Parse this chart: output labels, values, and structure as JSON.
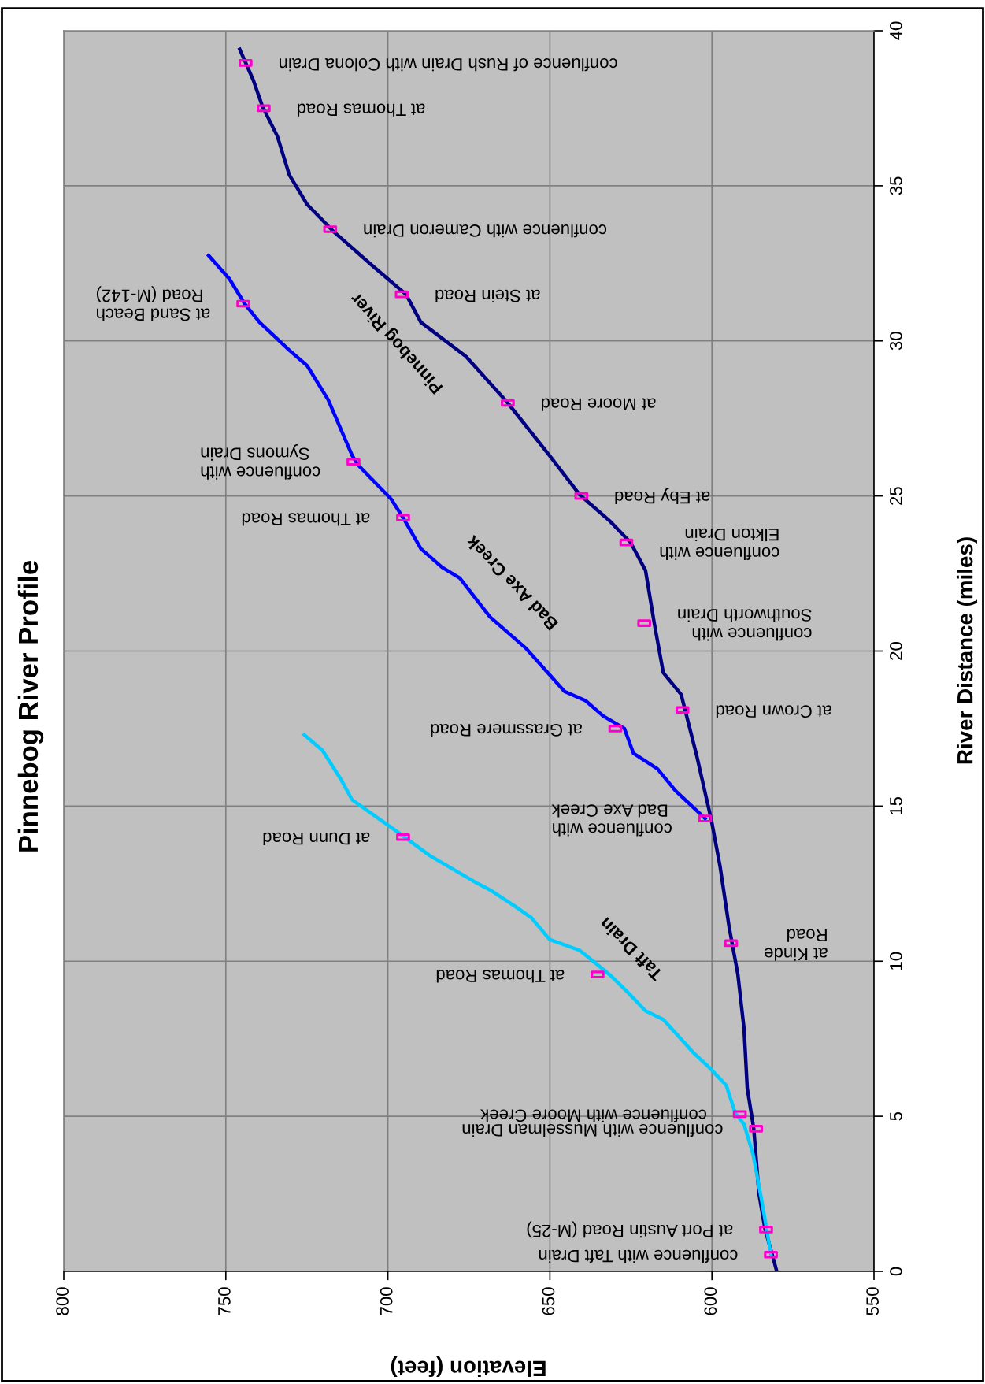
{
  "chart_data": {
    "type": "line",
    "title": "Pinnebog River Profile",
    "xlabel": "Elevation (feet)",
    "ylabel": "River Distance (miles)",
    "xlim": [
      800,
      550
    ],
    "xticks": [
      550,
      600,
      650,
      700,
      750,
      800
    ],
    "ylim": [
      0,
      40
    ],
    "yticks": [
      0,
      5,
      10,
      15,
      20,
      25,
      30,
      35,
      40
    ],
    "grid": true,
    "series": [
      {
        "name": "Pinnebog River",
        "color": "#000080",
        "values": [
          0,
          0.54,
          1.35,
          2.51,
          4.6,
          5.9,
          7.83,
          9.57,
          11.1,
          13.06,
          14.56,
          16.67,
          18.6,
          19.3,
          20.9,
          22.6,
          23.5,
          24.2,
          25.04,
          26.3,
          28.0,
          29.5,
          30.6,
          31.5,
          32.4,
          33.5,
          34.4,
          35.35,
          36.6,
          37.56,
          38.4,
          39.4
        ],
        "x": [
          580,
          581.4,
          583.6,
          585.5,
          587.1,
          589.1,
          590.1,
          592,
          594.7,
          597.5,
          600.2,
          604.8,
          609.5,
          615,
          617.8,
          620.5,
          625.1,
          631.6,
          640.8,
          650.1,
          663,
          675.9,
          689.8,
          694.4,
          704.5,
          716.5,
          724.9,
          730.4,
          734.1,
          738.7,
          741.5,
          745.7
        ]
      },
      {
        "name": "Bad Axe Creek",
        "color": "#0000ff",
        "values": [
          14.6,
          15.5,
          16.2,
          16.7,
          17.5,
          17.9,
          18.4,
          18.7,
          20.1,
          21.1,
          22.35,
          22.7,
          23.3,
          24.3,
          24.9,
          26.0,
          26.3,
          28.1,
          29.2,
          29.7,
          30.6,
          31.2,
          32.0,
          32.75
        ],
        "x": [
          602.1,
          611.3,
          616.8,
          624.2,
          627,
          633.5,
          639,
          645.5,
          657.5,
          668.5,
          677.8,
          683.3,
          689.8,
          695.3,
          699,
          709.2,
          711,
          718.4,
          724.9,
          730.4,
          739.6,
          744.2,
          748.9,
          755.3
        ]
      },
      {
        "name": "Taft Drain",
        "color": "#00ccff",
        "values": [
          0.54,
          2.2,
          3.77,
          4.74,
          5.1,
          6.0,
          6.6,
          7.06,
          8.12,
          8.4,
          9.0,
          9.57,
          10.35,
          10.7,
          11.4,
          11.8,
          12.3,
          12.5,
          13.4,
          14.04,
          15.2,
          15.9,
          16.8,
          17.3
        ],
        "x": [
          581.8,
          584.5,
          587.3,
          590.1,
          592.8,
          595.6,
          601.1,
          605.8,
          615,
          620.5,
          626,
          631.6,
          640.8,
          650.1,
          655.7,
          661.2,
          668.5,
          672.2,
          687,
          695.3,
          711,
          714.7,
          720.2,
          725.8
        ]
      },
      {
        "type": "scatter",
        "marker": "square",
        "color": "#ff00cc",
        "values": [
          38.96,
          37.5,
          33.6,
          31.2,
          31.5,
          28.0,
          26.1,
          25.0,
          24.3,
          23.5,
          20.9,
          18.1,
          17.5,
          14.6,
          14.0,
          10.58,
          9.57,
          5.07,
          4.6,
          1.35,
          0.54
        ],
        "x": [
          743.9,
          738.3,
          717.8,
          744.6,
          695.7,
          663,
          710.6,
          640.3,
          695.3,
          626.4,
          620.9,
          609.1,
          629.8,
          602.1,
          695.3,
          594.1,
          635.3,
          591.4,
          586.4,
          583.3,
          581.8
        ]
      }
    ],
    "annotations": [
      {
        "text": "confluence of Rush Drain with Colona Drain",
        "x": 743.9,
        "y": 38.96
      },
      {
        "text": "at Thomas Road",
        "x": 738.3,
        "y": 37.5
      },
      {
        "text": "confluence with Cameron Drain",
        "x": 717.8,
        "y": 33.6
      },
      {
        "text": "at Sand Beach\nRoad (M-142)",
        "x": 744.6,
        "y": 31.2
      },
      {
        "text": "at Stein Road",
        "x": 695.7,
        "y": 31.5
      },
      {
        "text": "at Moore Road",
        "x": 663,
        "y": 28.0
      },
      {
        "text": "confluence with\nSymons Drain",
        "x": 710.6,
        "y": 26.1
      },
      {
        "text": "at Eby Road",
        "x": 640.3,
        "y": 25.0
      },
      {
        "text": "at Thomas Road",
        "x": 695.3,
        "y": 24.3
      },
      {
        "text": "confluence with\nElkton Drain",
        "x": 626.4,
        "y": 23.5
      },
      {
        "text": "confluence with\nSouthworth Drain",
        "x": 620.9,
        "y": 20.9
      },
      {
        "text": "at Crown Road",
        "x": 609.1,
        "y": 18.1
      },
      {
        "text": "at Grassmere Road",
        "x": 629.8,
        "y": 17.5
      },
      {
        "text": "confluence with\nBad Axe Creek",
        "x": 602.1,
        "y": 14.6
      },
      {
        "text": "at Dunn Road",
        "x": 695.3,
        "y": 14.0
      },
      {
        "text": "at Kinde\nRoad",
        "x": 594.1,
        "y": 10.58
      },
      {
        "text": "at Thomas Road",
        "x": 635.3,
        "y": 9.57
      },
      {
        "text": "confluence with Moore Creek",
        "x": 591.4,
        "y": 5.07
      },
      {
        "text": "confluence with Musselman Drain",
        "x": 586.4,
        "y": 4.6
      },
      {
        "text": "at Port Austin Road (M-25)",
        "x": 583.3,
        "y": 1.35
      },
      {
        "text": "confluence with Taft Drain",
        "x": 581.8,
        "y": 0.54
      }
    ]
  }
}
